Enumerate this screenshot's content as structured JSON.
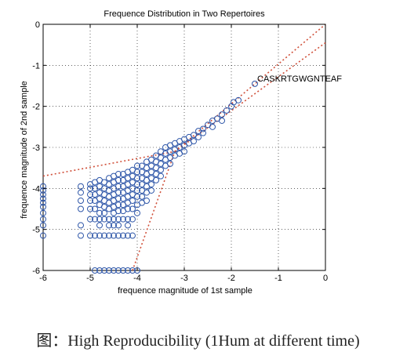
{
  "caption": "图：High Reproducibility (1Hum at different time)",
  "chart_data": {
    "type": "scatter",
    "title": "Frequence Distribution in Two Repertoires",
    "xlabel": "frequence magnitude of 1st sample",
    "ylabel": "frequence magnitude of 2nd sample",
    "xlim": [
      -6,
      0
    ],
    "ylim": [
      -6,
      0
    ],
    "xticks": [
      -6,
      -5,
      -4,
      -3,
      -2,
      -1,
      0
    ],
    "yticks": [
      0,
      -1,
      -2,
      -3,
      -4,
      -5,
      -6
    ],
    "xticklabels": [
      "-6",
      "-5",
      "-4",
      "-3",
      "-2",
      "-1",
      "0"
    ],
    "yticklabels": [
      "0",
      "-1",
      "-2",
      "-3",
      "-4",
      "-5",
      "-6"
    ],
    "grid": true,
    "marker_color": "#2e56a8",
    "line_color": "#d0503a",
    "annotation": {
      "text": "CASKRTGWGNTEAF",
      "x": -1.5,
      "y": -1.45
    },
    "points": [
      [
        -6.0,
        -3.95
      ],
      [
        -6.0,
        -4.05
      ],
      [
        -6.0,
        -4.15
      ],
      [
        -6.0,
        -4.25
      ],
      [
        -6.0,
        -4.35
      ],
      [
        -6.0,
        -4.45
      ],
      [
        -6.0,
        -4.6
      ],
      [
        -6.0,
        -4.75
      ],
      [
        -6.0,
        -4.9
      ],
      [
        -6.0,
        -5.15
      ],
      [
        -5.2,
        -3.95
      ],
      [
        -5.2,
        -4.1
      ],
      [
        -5.2,
        -4.3
      ],
      [
        -5.2,
        -4.5
      ],
      [
        -5.2,
        -4.9
      ],
      [
        -5.2,
        -5.15
      ],
      [
        -5.0,
        -3.9
      ],
      [
        -5.0,
        -4.0
      ],
      [
        -5.0,
        -4.15
      ],
      [
        -5.0,
        -4.3
      ],
      [
        -5.0,
        -4.5
      ],
      [
        -5.0,
        -4.75
      ],
      [
        -5.0,
        -5.15
      ],
      [
        -4.9,
        -3.85
      ],
      [
        -4.9,
        -4.0
      ],
      [
        -4.9,
        -4.15
      ],
      [
        -4.9,
        -4.3
      ],
      [
        -4.9,
        -4.5
      ],
      [
        -4.9,
        -4.75
      ],
      [
        -4.9,
        -5.15
      ],
      [
        -4.9,
        -6.0
      ],
      [
        -4.8,
        -3.8
      ],
      [
        -4.8,
        -3.95
      ],
      [
        -4.8,
        -4.1
      ],
      [
        -4.8,
        -4.25
      ],
      [
        -4.8,
        -4.4
      ],
      [
        -4.8,
        -4.6
      ],
      [
        -4.8,
        -4.75
      ],
      [
        -4.8,
        -4.9
      ],
      [
        -4.8,
        -5.15
      ],
      [
        -4.8,
        -6.0
      ],
      [
        -4.7,
        -3.85
      ],
      [
        -4.7,
        -4.0
      ],
      [
        -4.7,
        -4.15
      ],
      [
        -4.7,
        -4.3
      ],
      [
        -4.7,
        -4.45
      ],
      [
        -4.7,
        -4.6
      ],
      [
        -4.7,
        -4.75
      ],
      [
        -4.7,
        -5.15
      ],
      [
        -4.7,
        -6.0
      ],
      [
        -4.6,
        -3.75
      ],
      [
        -4.6,
        -3.9
      ],
      [
        -4.6,
        -4.05
      ],
      [
        -4.6,
        -4.2
      ],
      [
        -4.6,
        -4.35
      ],
      [
        -4.6,
        -4.5
      ],
      [
        -4.6,
        -4.75
      ],
      [
        -4.6,
        -4.9
      ],
      [
        -4.6,
        -5.15
      ],
      [
        -4.6,
        -6.0
      ],
      [
        -4.5,
        -3.7
      ],
      [
        -4.5,
        -3.85
      ],
      [
        -4.5,
        -4.0
      ],
      [
        -4.5,
        -4.15
      ],
      [
        -4.5,
        -4.3
      ],
      [
        -4.5,
        -4.45
      ],
      [
        -4.5,
        -4.6
      ],
      [
        -4.5,
        -4.75
      ],
      [
        -4.5,
        -4.9
      ],
      [
        -4.5,
        -5.15
      ],
      [
        -4.5,
        -6.0
      ],
      [
        -4.4,
        -3.65
      ],
      [
        -4.4,
        -3.8
      ],
      [
        -4.4,
        -3.95
      ],
      [
        -4.4,
        -4.1
      ],
      [
        -4.4,
        -4.25
      ],
      [
        -4.4,
        -4.4
      ],
      [
        -4.4,
        -4.55
      ],
      [
        -4.4,
        -4.75
      ],
      [
        -4.4,
        -4.9
      ],
      [
        -4.4,
        -5.15
      ],
      [
        -4.4,
        -6.0
      ],
      [
        -4.3,
        -3.65
      ],
      [
        -4.3,
        -3.8
      ],
      [
        -4.3,
        -3.95
      ],
      [
        -4.3,
        -4.1
      ],
      [
        -4.3,
        -4.25
      ],
      [
        -4.3,
        -4.4
      ],
      [
        -4.3,
        -4.55
      ],
      [
        -4.3,
        -4.75
      ],
      [
        -4.3,
        -5.15
      ],
      [
        -4.3,
        -6.0
      ],
      [
        -4.2,
        -3.6
      ],
      [
        -4.2,
        -3.75
      ],
      [
        -4.2,
        -3.9
      ],
      [
        -4.2,
        -4.05
      ],
      [
        -4.2,
        -4.2
      ],
      [
        -4.2,
        -4.35
      ],
      [
        -4.2,
        -4.5
      ],
      [
        -4.2,
        -4.75
      ],
      [
        -4.2,
        -4.9
      ],
      [
        -4.2,
        -5.15
      ],
      [
        -4.2,
        -6.0
      ],
      [
        -4.1,
        -3.55
      ],
      [
        -4.1,
        -3.7
      ],
      [
        -4.1,
        -3.85
      ],
      [
        -4.1,
        -4.0
      ],
      [
        -4.1,
        -4.15
      ],
      [
        -4.1,
        -4.3
      ],
      [
        -4.1,
        -4.5
      ],
      [
        -4.1,
        -4.75
      ],
      [
        -4.1,
        -5.15
      ],
      [
        -4.1,
        -6.0
      ],
      [
        -4.0,
        -3.45
      ],
      [
        -4.0,
        -3.6
      ],
      [
        -4.0,
        -3.75
      ],
      [
        -4.0,
        -3.9
      ],
      [
        -4.0,
        -4.05
      ],
      [
        -4.0,
        -4.2
      ],
      [
        -4.0,
        -4.4
      ],
      [
        -4.0,
        -4.6
      ],
      [
        -4.0,
        -6.0
      ],
      [
        -3.9,
        -3.45
      ],
      [
        -3.9,
        -3.6
      ],
      [
        -3.9,
        -3.75
      ],
      [
        -3.9,
        -3.9
      ],
      [
        -3.9,
        -4.05
      ],
      [
        -3.9,
        -4.2
      ],
      [
        -3.9,
        -4.35
      ],
      [
        -3.8,
        -3.35
      ],
      [
        -3.8,
        -3.5
      ],
      [
        -3.8,
        -3.65
      ],
      [
        -3.8,
        -3.8
      ],
      [
        -3.8,
        -3.95
      ],
      [
        -3.8,
        -4.1
      ],
      [
        -3.8,
        -4.3
      ],
      [
        -3.7,
        -3.3
      ],
      [
        -3.7,
        -3.45
      ],
      [
        -3.7,
        -3.6
      ],
      [
        -3.7,
        -3.75
      ],
      [
        -3.7,
        -3.9
      ],
      [
        -3.7,
        -4.05
      ],
      [
        -3.6,
        -3.2
      ],
      [
        -3.6,
        -3.35
      ],
      [
        -3.6,
        -3.5
      ],
      [
        -3.6,
        -3.65
      ],
      [
        -3.6,
        -3.8
      ],
      [
        -3.5,
        -3.1
      ],
      [
        -3.5,
        -3.25
      ],
      [
        -3.5,
        -3.4
      ],
      [
        -3.5,
        -3.55
      ],
      [
        -3.5,
        -3.7
      ],
      [
        -3.4,
        -3.0
      ],
      [
        -3.4,
        -3.15
      ],
      [
        -3.4,
        -3.3
      ],
      [
        -3.4,
        -3.45
      ],
      [
        -3.3,
        -2.95
      ],
      [
        -3.3,
        -3.1
      ],
      [
        -3.3,
        -3.25
      ],
      [
        -3.3,
        -3.4
      ],
      [
        -3.2,
        -2.9
      ],
      [
        -3.2,
        -3.05
      ],
      [
        -3.2,
        -3.2
      ],
      [
        -3.1,
        -2.85
      ],
      [
        -3.1,
        -3.0
      ],
      [
        -3.1,
        -3.15
      ],
      [
        -3.0,
        -2.8
      ],
      [
        -3.0,
        -2.95
      ],
      [
        -3.0,
        -3.1
      ],
      [
        -2.9,
        -2.75
      ],
      [
        -2.9,
        -2.9
      ],
      [
        -2.8,
        -2.7
      ],
      [
        -2.8,
        -2.85
      ],
      [
        -2.7,
        -2.6
      ],
      [
        -2.7,
        -2.75
      ],
      [
        -2.6,
        -2.55
      ],
      [
        -2.6,
        -2.65
      ],
      [
        -2.5,
        -2.45
      ],
      [
        -2.4,
        -2.35
      ],
      [
        -2.4,
        -2.5
      ],
      [
        -2.3,
        -2.3
      ],
      [
        -2.2,
        -2.2
      ],
      [
        -2.2,
        -2.35
      ],
      [
        -2.1,
        -2.1
      ],
      [
        -2.0,
        -2.0
      ],
      [
        -1.95,
        -1.9
      ],
      [
        -1.85,
        -1.85
      ],
      [
        -1.5,
        -1.45
      ]
    ],
    "fit_lines": [
      {
        "points": [
          [
            -6.0,
            -3.7
          ],
          [
            -3.2,
            -3.1
          ]
        ]
      },
      {
        "points": [
          [
            -4.1,
            -6.0
          ],
          [
            -3.2,
            -3.1
          ]
        ]
      },
      {
        "points": [
          [
            -3.2,
            -3.1
          ],
          [
            0.0,
            0.15
          ]
        ]
      },
      {
        "points": [
          [
            -3.2,
            -3.1
          ],
          [
            0.0,
            -0.45
          ]
        ]
      }
    ]
  }
}
